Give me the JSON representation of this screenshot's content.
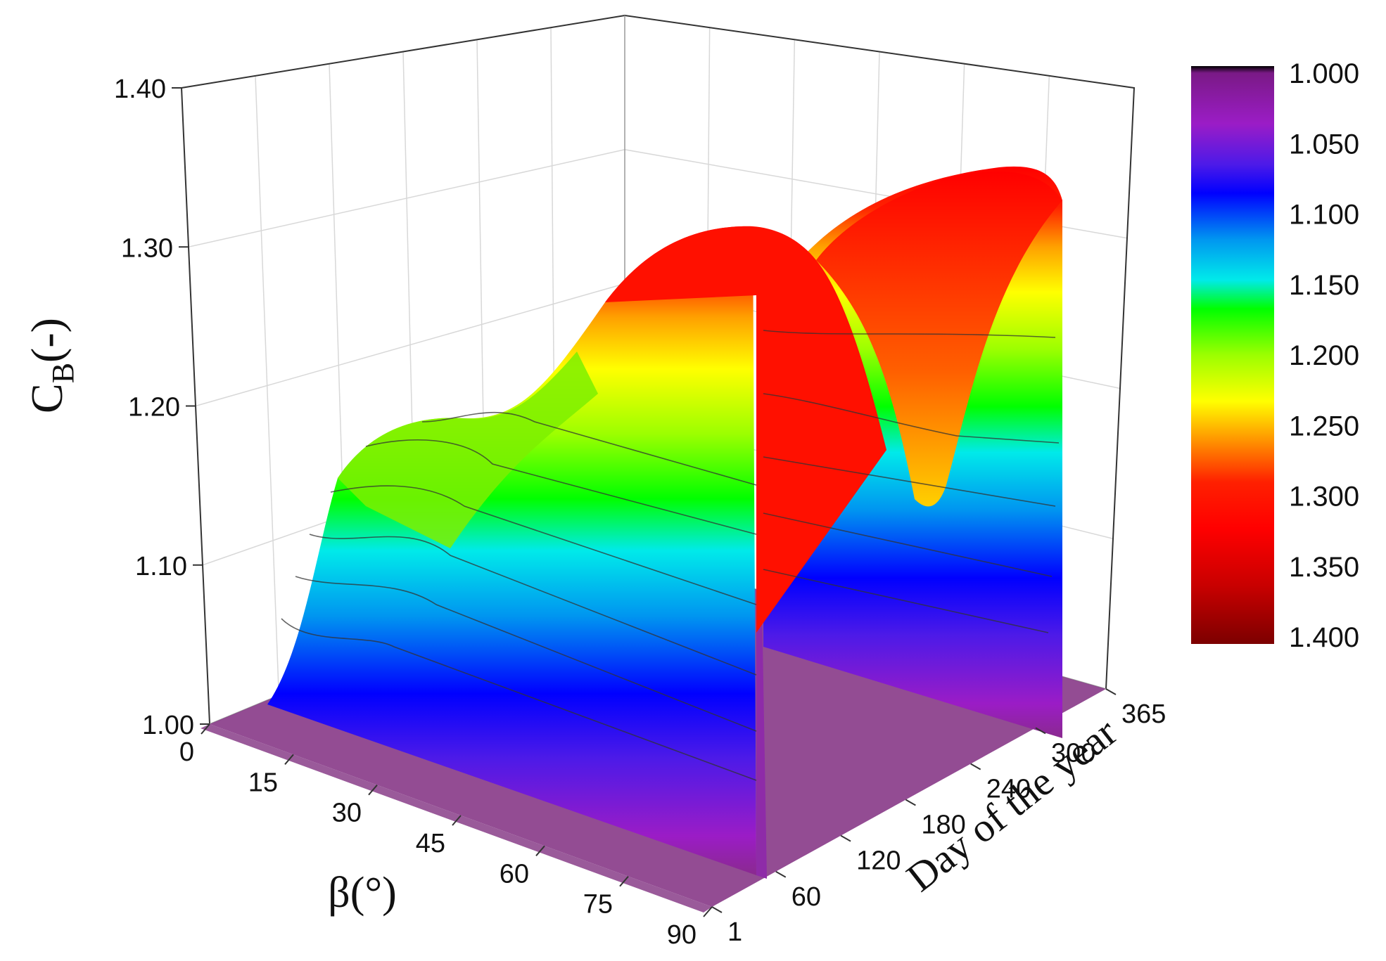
{
  "chart_data": {
    "type": "surface3d",
    "zlabel": {
      "main": "C",
      "sub": "B",
      "unit": "(-)"
    },
    "xlabel": "β(°)",
    "ylabel": "Day of the year",
    "x_axis": {
      "name": "β",
      "unit": "°",
      "ticks": [
        "0",
        "15",
        "30",
        "45",
        "60",
        "75",
        "90"
      ],
      "range": [
        0,
        90
      ]
    },
    "y_axis": {
      "ticks": [
        "1",
        "60",
        "120",
        "180",
        "240",
        "300",
        "365"
      ],
      "range": [
        1,
        365
      ]
    },
    "z_axis": {
      "ticks": [
        "1.00",
        "1.10",
        "1.20",
        "1.30",
        "1.40"
      ],
      "range": [
        1.0,
        1.4
      ]
    },
    "colorbar": {
      "labels": [
        "1.000",
        "1.050",
        "1.100",
        "1.150",
        "1.200",
        "1.250",
        "1.300",
        "1.350",
        "1.400"
      ],
      "range": [
        1.0,
        1.4
      ],
      "stops": [
        "#000000",
        "#7a1a86",
        "#9b1cc6",
        "#4d1ae8",
        "#0000ff",
        "#0096f0",
        "#00eaea",
        "#00ff00",
        "#9cff00",
        "#ffff00",
        "#ffa000",
        "#ff2000",
        "#ff0000",
        "#c80000",
        "#7c0000"
      ]
    },
    "surface_note_values": {
      "beta_0_ridge_day": [
        1,
        60,
        120,
        180,
        240,
        300,
        365
      ],
      "beta_0_ridge_cb": [
        1.0,
        1.16,
        1.2,
        1.2,
        1.29,
        1.23,
        1.32
      ],
      "beta_90_front_cb": [
        1.31
      ],
      "day_365_cb_peak": 1.32,
      "min_trough_day": 300,
      "min_trough_cb": 1.14
    },
    "floor_value": 1.0,
    "grid": true
  }
}
